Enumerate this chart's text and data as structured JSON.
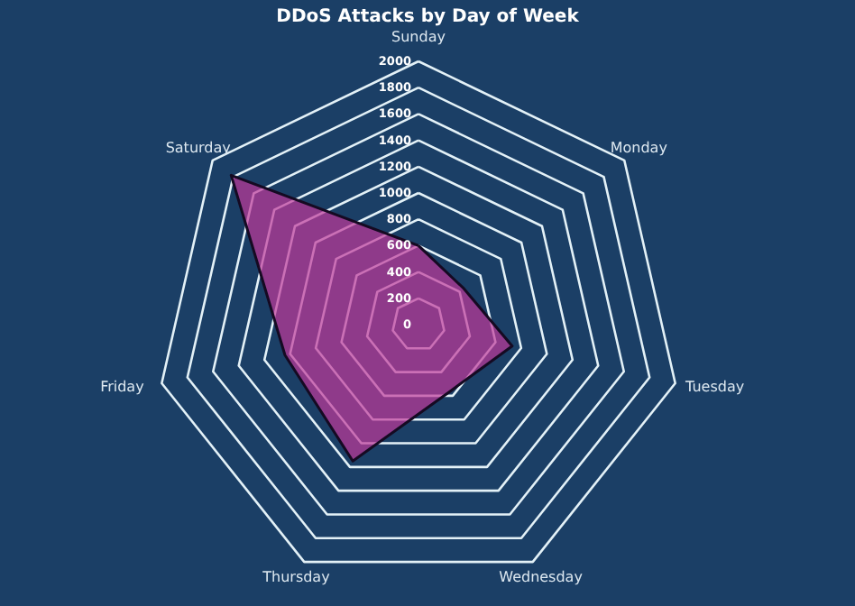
{
  "chart_data": {
    "type": "radar",
    "title": "DDoS Attacks by Day of Week",
    "categories": [
      "Sunday",
      "Monday",
      "Tuesday",
      "Wednesday",
      "Thursday",
      "Friday",
      "Saturday"
    ],
    "series": [
      {
        "color": "#c0399a",
        "values": [
          600,
          440,
          730,
          560,
          1150,
          1040,
          1820
        ]
      }
    ],
    "ylim": [
      0,
      2000
    ],
    "yticks": [
      0,
      200,
      400,
      600,
      800,
      1000,
      1200,
      1400,
      1600,
      1800,
      2000
    ],
    "grid": true
  }
}
